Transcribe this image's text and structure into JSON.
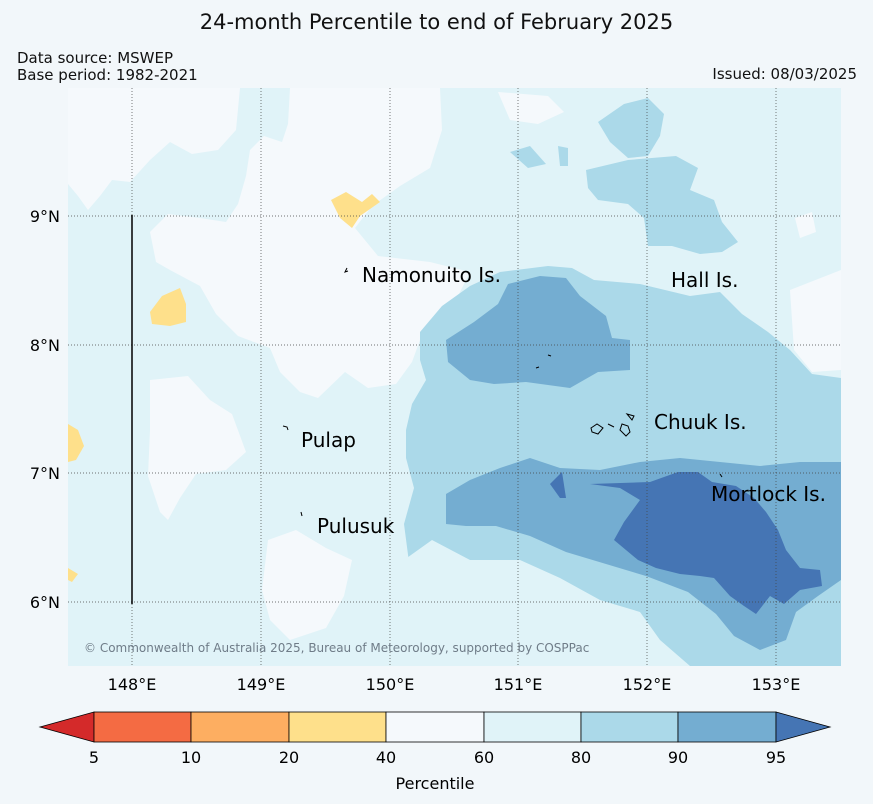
{
  "title": "24-month Percentile to end of February 2025",
  "meta": {
    "data_source": "Data source: MSWEP",
    "base_period": "Base period: 1982-2021",
    "issued": "Issued: 08/03/2025"
  },
  "map": {
    "lon_labels": [
      "148°E",
      "149°E",
      "150°E",
      "151°E",
      "152°E",
      "153°E"
    ],
    "lat_labels": [
      "9°N",
      "8°N",
      "7°N",
      "6°N"
    ],
    "places": {
      "namonuito": "Namonuito Is.",
      "hall": "Hall Is.",
      "pulap": "Pulap",
      "chuuk": "Chuuk Is.",
      "pulusuk": "Pulusuk",
      "mortlock": "Mortlock Is."
    },
    "copyright": "© Commonwealth of Australia 2025, Bureau of Meteorology, supported by COSPPac"
  },
  "colorbar": {
    "ticks": [
      "5",
      "10",
      "20",
      "40",
      "60",
      "80",
      "90",
      "95"
    ],
    "label": "Percentile",
    "colors": {
      "below5": "#d42a2a",
      "p5_10": "#f46b43",
      "p10_20": "#fdae61",
      "p20_40": "#fee08b",
      "p40_60": "#f5f9fc",
      "p60_80": "#e0f3f8",
      "p80_90": "#abd9e9",
      "p90_95": "#74add1",
      "above95": "#4575b4"
    }
  }
}
